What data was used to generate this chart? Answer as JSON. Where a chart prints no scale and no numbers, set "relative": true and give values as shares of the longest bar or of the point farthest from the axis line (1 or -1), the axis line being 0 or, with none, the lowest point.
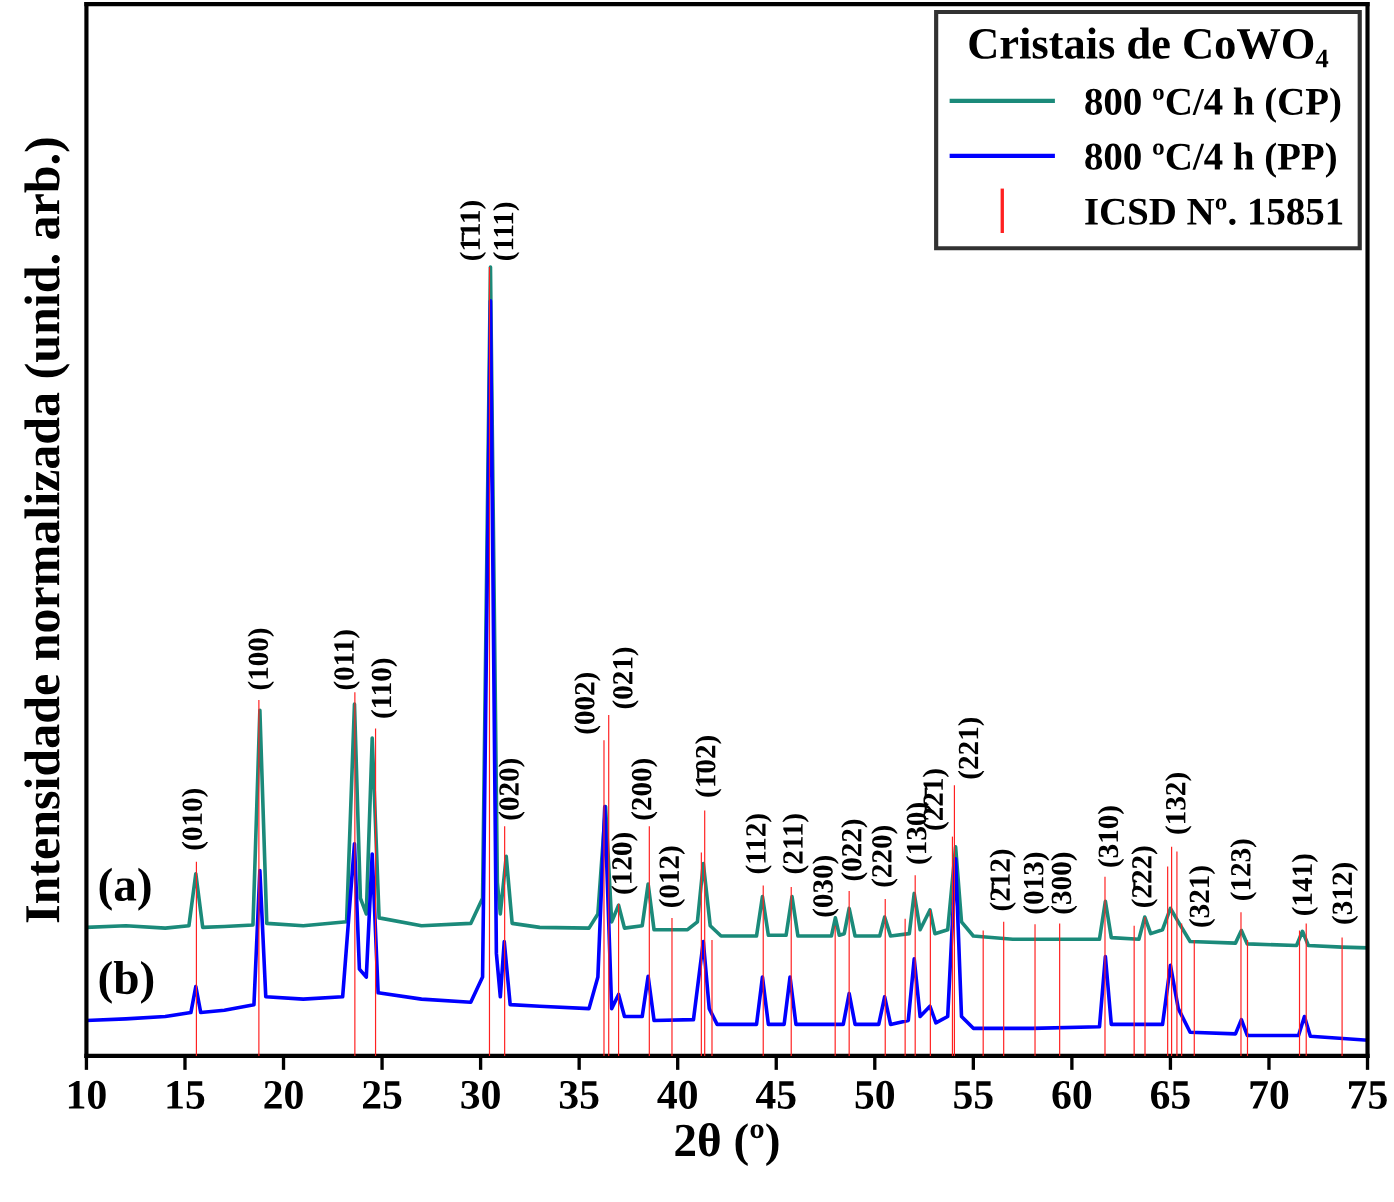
{
  "chart_data": {
    "type": "line",
    "relative": true,
    "xlabel": "2θ (º)",
    "ylabel": "Intensidade normalizada (unid. arb.)",
    "legend_title": "Cristais de CoWO₄",
    "legend": "top right",
    "grid": false,
    "tick_labels": "x",
    "xlim": [
      10,
      75
    ],
    "xticks": [
      10,
      15,
      20,
      25,
      30,
      35,
      40,
      45,
      50,
      55,
      60,
      65,
      70,
      75
    ],
    "series": [
      {
        "name": "800 ºC/4 h (CP)",
        "color": "#1b8a7a",
        "x": [
          10,
          12,
          14,
          15.2,
          15.55,
          15.9,
          17,
          18.45,
          18.8,
          19.15,
          21,
          23.2,
          23.6,
          23.9,
          24.2,
          24.5,
          24.85,
          27,
          29.5,
          30.1,
          30.5,
          30.85,
          31.0,
          31.3,
          31.6,
          33,
          35.5,
          35.95,
          36.34,
          36.65,
          37.0,
          37.3,
          38.2,
          38.5,
          38.8,
          40.5,
          41.0,
          41.3,
          41.65,
          42.2,
          44.0,
          44.3,
          44.6,
          45.5,
          45.8,
          46.1,
          47.8,
          48.0,
          48.2,
          48.45,
          48.7,
          49.0,
          50.25,
          50.5,
          50.8,
          51.75,
          52.0,
          52.3,
          52.8,
          53.05,
          53.7,
          54.1,
          54.4,
          55,
          57,
          59,
          61.4,
          61.7,
          62.0,
          63.4,
          63.7,
          64.0,
          64.6,
          65.0,
          65.4,
          66,
          68.3,
          68.6,
          68.9,
          71.4,
          71.7,
          72.0,
          73.7,
          75
        ],
        "values": [
          0.163,
          0.165,
          0.162,
          0.165,
          0.231,
          0.163,
          0.164,
          0.166,
          0.438,
          0.168,
          0.165,
          0.17,
          0.446,
          0.2,
          0.18,
          0.403,
          0.175,
          0.165,
          0.168,
          0.2,
          1.0,
          0.22,
          0.18,
          0.253,
          0.168,
          0.163,
          0.162,
          0.18,
          0.316,
          0.17,
          0.191,
          0.162,
          0.165,
          0.218,
          0.16,
          0.16,
          0.17,
          0.244,
          0.165,
          0.152,
          0.152,
          0.202,
          0.153,
          0.153,
          0.202,
          0.152,
          0.152,
          0.175,
          0.153,
          0.155,
          0.187,
          0.152,
          0.152,
          0.176,
          0.152,
          0.155,
          0.206,
          0.16,
          0.185,
          0.155,
          0.16,
          0.265,
          0.17,
          0.152,
          0.148,
          0.148,
          0.148,
          0.196,
          0.15,
          0.148,
          0.176,
          0.155,
          0.16,
          0.187,
          0.17,
          0.145,
          0.143,
          0.159,
          0.142,
          0.14,
          0.158,
          0.14,
          0.138,
          0.137
        ]
      },
      {
        "name": "800 ºC/4 h (PP)",
        "color": "#0000ff",
        "x": [
          10,
          12,
          14,
          15.3,
          15.55,
          15.8,
          17,
          18.5,
          18.8,
          19.1,
          21,
          23,
          23.6,
          23.85,
          24.2,
          24.5,
          24.8,
          27,
          29.5,
          30.1,
          30.5,
          30.8,
          31.0,
          31.2,
          31.5,
          33,
          35.5,
          35.95,
          36.3,
          36.65,
          37.0,
          37.3,
          38.2,
          38.5,
          38.8,
          40.8,
          41.3,
          41.6,
          42,
          44.0,
          44.3,
          44.6,
          45.4,
          45.7,
          46,
          48.4,
          48.7,
          49,
          50.2,
          50.5,
          50.8,
          51.7,
          52.0,
          52.3,
          52.8,
          53.1,
          53.7,
          54.1,
          54.4,
          55,
          58,
          61.4,
          61.7,
          62,
          64.6,
          65.0,
          65.4,
          66,
          68.3,
          68.6,
          68.9,
          71.5,
          71.8,
          72.1,
          75
        ],
        "values": [
          0.045,
          0.047,
          0.05,
          0.055,
          0.088,
          0.055,
          0.058,
          0.065,
          0.235,
          0.075,
          0.072,
          0.075,
          0.269,
          0.11,
          0.1,
          0.256,
          0.08,
          0.072,
          0.068,
          0.1,
          0.957,
          0.13,
          0.075,
          0.145,
          0.065,
          0.063,
          0.06,
          0.1,
          0.316,
          0.06,
          0.078,
          0.05,
          0.05,
          0.101,
          0.045,
          0.046,
          0.145,
          0.06,
          0.04,
          0.04,
          0.1,
          0.04,
          0.04,
          0.1,
          0.04,
          0.04,
          0.079,
          0.04,
          0.04,
          0.075,
          0.04,
          0.045,
          0.123,
          0.05,
          0.063,
          0.042,
          0.05,
          0.25,
          0.05,
          0.035,
          0.035,
          0.037,
          0.126,
          0.04,
          0.04,
          0.115,
          0.06,
          0.03,
          0.028,
          0.046,
          0.026,
          0.026,
          0.05,
          0.025,
          0.02
        ]
      },
      {
        "name": "ICSD Nº. 15851",
        "type": "bar",
        "color": "#ff2020",
        "x": [
          15.58,
          18.75,
          23.62,
          24.67,
          30.45,
          31.22,
          36.26,
          36.5,
          37.0,
          38.56,
          39.71,
          41.2,
          41.37,
          41.74,
          44.34,
          45.76,
          47.99,
          48.7,
          50.53,
          51.54,
          52.05,
          52.82,
          53.94,
          54.04,
          55.5,
          56.54,
          58.13,
          59.38,
          61.68,
          63.16,
          63.71,
          64.86,
          65.06,
          65.33,
          65.57,
          66.21,
          68.58,
          68.91,
          71.55,
          71.89,
          73.71
        ],
        "values": [
          0.246,
          0.451,
          0.461,
          0.415,
          1.0,
          0.291,
          0.4,
          0.432,
          0.193,
          0.291,
          0.175,
          0.258,
          0.311,
          0.147,
          0.216,
          0.214,
          0.165,
          0.209,
          0.199,
          0.174,
          0.229,
          0.185,
          0.278,
          0.343,
          0.159,
          0.17,
          0.167,
          0.168,
          0.227,
          0.165,
          0.176,
          0.24,
          0.265,
          0.259,
          0.168,
          0.147,
          0.182,
          0.147,
          0.159,
          0.168,
          0.15
        ]
      }
    ],
    "annotations": [
      "(a)",
      "(b)",
      {
        "text": "(010)",
        "x": 15.5,
        "y": 0.253
      },
      {
        "text": "(100)",
        "x": 18.85,
        "y": 0.456
      },
      {
        "text": "(011)",
        "x": 23.2,
        "y": 0.456
      },
      {
        "text": "(110)",
        "x": 25.1,
        "y": 0.42
      },
      {
        "text": "(1̄11)",
        "x": 30.45,
        "y": 1.0
      },
      {
        "text": "(111)",
        "x": 30.45,
        "y": 1.0
      },
      {
        "text": "(020)",
        "x": 31.57,
        "y": 0.291
      },
      {
        "text": "(002)",
        "x": 36.26,
        "y": 0.4
      },
      {
        "text": "(021)",
        "x": 36.5,
        "y": 0.432
      },
      {
        "text": "(120)",
        "x": 37.3,
        "y": 0.197
      },
      {
        "text": "(200)",
        "x": 38.3,
        "y": 0.291
      },
      {
        "text": "(012)",
        "x": 39.7,
        "y": 0.18
      },
      {
        "text": "(1̄02)",
        "x": 41.55,
        "y": 0.32
      },
      {
        "text": "(112)",
        "x": 44.1,
        "y": 0.223
      },
      {
        "text": "(211)",
        "x": 45.98,
        "y": 0.223
      },
      {
        "text": "(030)",
        "x": 47.5,
        "y": 0.168
      },
      {
        "text": "(022)",
        "x": 48.96,
        "y": 0.214
      },
      {
        "text": "(220)",
        "x": 50.49,
        "y": 0.206
      },
      {
        "text": "(130)",
        "x": 52.25,
        "y": 0.235
      },
      {
        "text": "(2̄2̄1)",
        "x": 53.94,
        "y": 0.278
      },
      {
        "text": "(221)",
        "x": 54.04,
        "y": 0.343
      },
      {
        "text": "(2̄12)",
        "x": 56.49,
        "y": 0.176
      },
      {
        "text": "(013)",
        "x": 58.19,
        "y": 0.172
      },
      {
        "text": "(300)",
        "x": 59.6,
        "y": 0.172
      },
      {
        "text": "(310)",
        "x": 61.98,
        "y": 0.231
      },
      {
        "text": "(2̄22)",
        "x": 63.68,
        "y": 0.18
      },
      {
        "text": "(132)",
        "x": 65.4,
        "y": 0.273
      },
      {
        "text": "(321)",
        "x": 66.6,
        "y": 0.155
      },
      {
        "text": "(123)",
        "x": 68.7,
        "y": 0.189
      },
      {
        "text": "(141)",
        "x": 71.82,
        "y": 0.17
      },
      {
        "text": "(312)",
        "x": 73.85,
        "y": 0.159
      }
    ]
  }
}
